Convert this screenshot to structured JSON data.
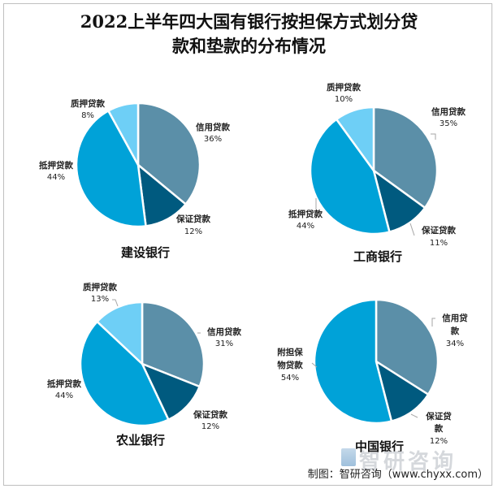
{
  "title": {
    "line1": "2022上半年四大国有银行按担保方式划分贷",
    "line2": "款和垫款的分布情况"
  },
  "colors": {
    "credit": "#5b8fa8",
    "guarantee": "#005a7f",
    "mortgage": "#00a2d8",
    "pledge": "#6ecff6",
    "secured": "#00a2d8"
  },
  "source": "制图：智研咨询（www.chyxx.com）",
  "watermark": "智研咨询",
  "chart_data": [
    {
      "type": "pie",
      "title": "建设银行",
      "categories": [
        "信用贷款",
        "保证贷款",
        "抵押贷款",
        "质押贷款"
      ],
      "values": [
        36,
        12,
        44,
        8
      ],
      "unit": "%"
    },
    {
      "type": "pie",
      "title": "工商银行",
      "categories": [
        "信用贷款",
        "保证贷款",
        "抵押贷款",
        "质押贷款"
      ],
      "values": [
        35,
        11,
        44,
        10
      ],
      "unit": "%"
    },
    {
      "type": "pie",
      "title": "农业银行",
      "categories": [
        "信用贷款",
        "保证贷款",
        "抵押贷款",
        "质押贷款"
      ],
      "values": [
        31,
        12,
        44,
        13
      ],
      "unit": "%"
    },
    {
      "type": "pie",
      "title": "中国银行",
      "categories": [
        "信用贷款",
        "保证贷款",
        "附担保物贷款"
      ],
      "values": [
        34,
        12,
        54
      ],
      "unit": "%"
    }
  ],
  "labels": {
    "ccb": {
      "bank": "建设银行",
      "credit": "信用贷款",
      "credit_pct": "36%",
      "guarantee": "保证贷款",
      "guarantee_pct": "12%",
      "mortgage": "抵押贷款",
      "mortgage_pct": "44%",
      "pledge": "质押贷款",
      "pledge_pct": "8%"
    },
    "icbc": {
      "bank": "工商银行",
      "credit": "信用贷款",
      "credit_pct": "35%",
      "guarantee": "保证贷款",
      "guarantee_pct": "11%",
      "mortgage": "抵押贷款",
      "mortgage_pct": "44%",
      "pledge": "质押贷款",
      "pledge_pct": "10%"
    },
    "abc": {
      "bank": "农业银行",
      "credit": "信用贷款",
      "credit_pct": "31%",
      "guarantee": "保证贷款",
      "guarantee_pct": "12%",
      "mortgage": "抵押贷款",
      "mortgage_pct": "44%",
      "pledge": "质押贷款",
      "pledge_pct": "13%"
    },
    "boc": {
      "bank": "中国银行",
      "credit_l1": "信用贷",
      "credit_l2": "款",
      "credit_pct": "34%",
      "guarantee_l1": "保证贷",
      "guarantee_l2": "款",
      "guarantee_pct": "12%",
      "secured_l1": "附担保",
      "secured_l2": "物贷款",
      "secured_pct": "54%"
    }
  }
}
